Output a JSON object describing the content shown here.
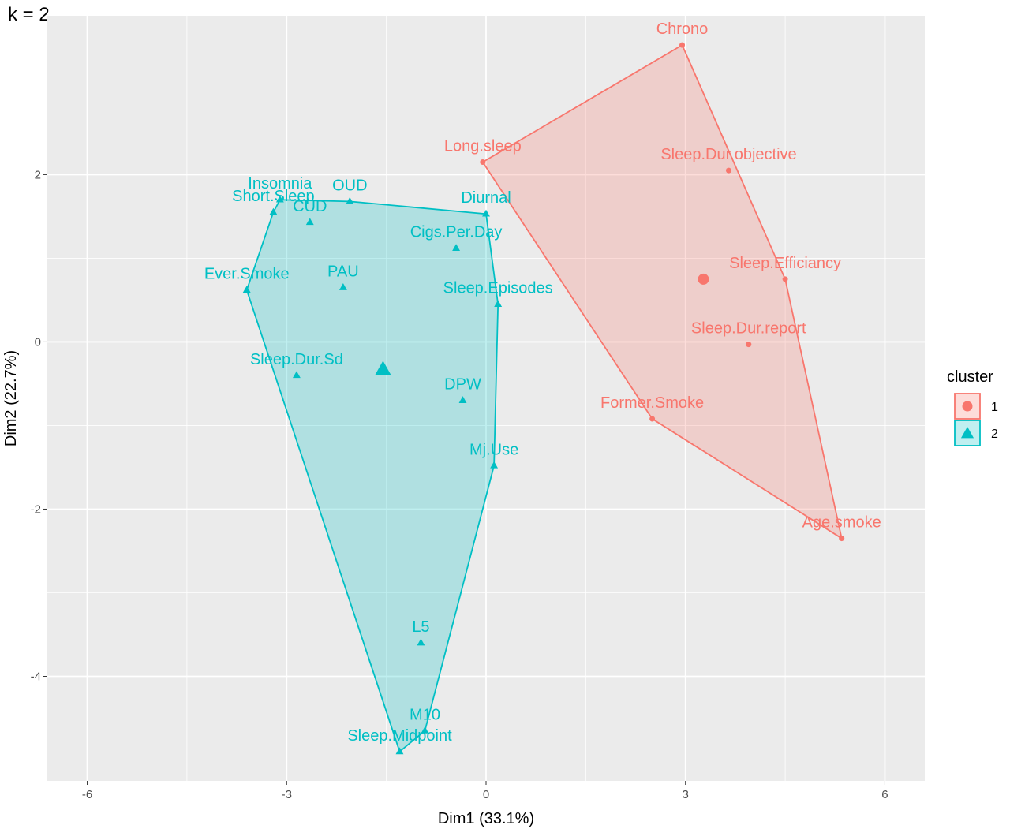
{
  "chart_data": {
    "type": "scatter",
    "title": "k = 2",
    "xlabel": "Dim1 (33.1%)",
    "ylabel": "Dim2 (22.7%)",
    "xlim": [
      -6.6,
      6.6
    ],
    "ylim": [
      -5.25,
      3.9
    ],
    "x_ticks": [
      -6,
      -3,
      0,
      3,
      6
    ],
    "x_tick_labels": [
      "-6",
      "-3",
      "0",
      "3",
      "6"
    ],
    "y_ticks": [
      -4,
      -2,
      0,
      2
    ],
    "y_tick_labels": [
      "-4",
      "-2",
      "0",
      "2"
    ],
    "grid": true,
    "legend": {
      "title": "cluster",
      "position": "right",
      "entries": [
        "1",
        "2"
      ]
    },
    "series": [
      {
        "name": "1",
        "color": "#F8766D",
        "marker": "circle",
        "points": [
          {
            "label": "Chrono",
            "x": 2.95,
            "y": 3.55
          },
          {
            "label": "Long.sleep",
            "x": -0.05,
            "y": 2.15
          },
          {
            "label": "Sleep.Dur.objective",
            "x": 3.65,
            "y": 2.05
          },
          {
            "label": "Sleep.Efficiancy",
            "x": 4.5,
            "y": 0.75
          },
          {
            "label": "Sleep.Dur.report",
            "x": 3.95,
            "y": -0.03
          },
          {
            "label": "Former.Smoke",
            "x": 2.5,
            "y": -0.92
          },
          {
            "label": "Age.smoke",
            "x": 5.35,
            "y": -2.35
          }
        ],
        "hull": [
          "Chrono",
          "Sleep.Efficiancy",
          "Age.smoke",
          "Former.Smoke",
          "Long.sleep"
        ],
        "centroid": {
          "x": 3.27,
          "y": 0.75
        }
      },
      {
        "name": "2",
        "color": "#00BFC4",
        "marker": "triangle",
        "points": [
          {
            "label": "Insomnia",
            "x": -3.1,
            "y": 1.7
          },
          {
            "label": "OUD",
            "x": -2.05,
            "y": 1.68
          },
          {
            "label": "Short.Sleep",
            "x": -3.2,
            "y": 1.55
          },
          {
            "label": "CUD",
            "x": -2.65,
            "y": 1.43
          },
          {
            "label": "Diurnal",
            "x": 0.0,
            "y": 1.53
          },
          {
            "label": "Cigs.Per.Day",
            "x": -0.45,
            "y": 1.12
          },
          {
            "label": "Ever.Smoke",
            "x": -3.6,
            "y": 0.62
          },
          {
            "label": "PAU",
            "x": -2.15,
            "y": 0.65
          },
          {
            "label": "Sleep.Episodes",
            "x": 0.18,
            "y": 0.45
          },
          {
            "label": "Sleep.Dur.Sd",
            "x": -2.85,
            "y": -0.4
          },
          {
            "label": "DPW",
            "x": -0.35,
            "y": -0.7
          },
          {
            "label": "Mj.Use",
            "x": 0.12,
            "y": -1.48
          },
          {
            "label": "L5",
            "x": -0.98,
            "y": -3.6
          },
          {
            "label": "M10",
            "x": -0.92,
            "y": -4.65
          },
          {
            "label": "Sleep.Midpoint",
            "x": -1.3,
            "y": -4.9
          }
        ],
        "hull": [
          "Insomnia",
          "OUD",
          "Diurnal",
          "Sleep.Episodes",
          "Mj.Use",
          "M10",
          "Sleep.Midpoint",
          "Ever.Smoke",
          "Short.Sleep"
        ],
        "centroid": {
          "x": -1.55,
          "y": -0.33
        }
      }
    ]
  }
}
